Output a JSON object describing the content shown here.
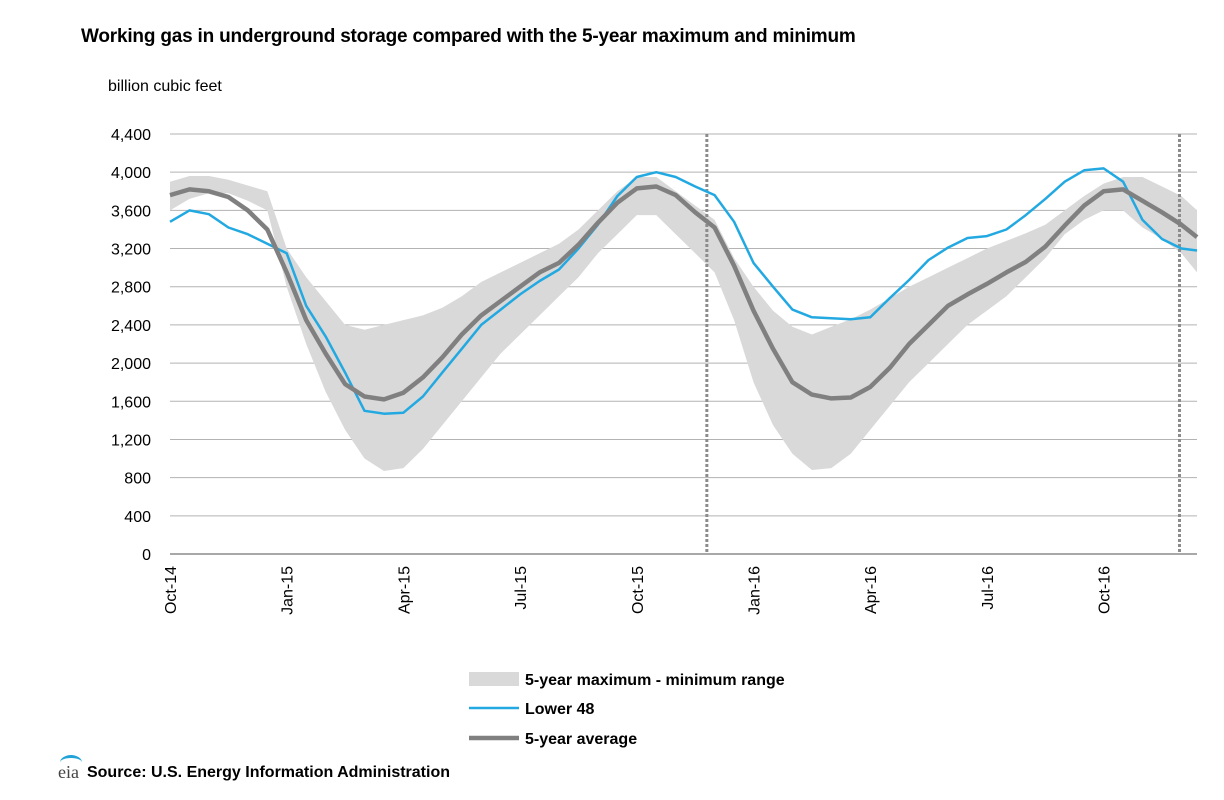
{
  "title": "Working gas in underground storage compared with the  5-year maximum and minimum",
  "unit_label": "billion  cubic feet",
  "source": "Source:  U.S. Energy Information Administration",
  "logo_text": "eia",
  "colors": {
    "range": "#d9d9d9",
    "lower48": "#23a9e1",
    "avg": "#808080",
    "grid": "#b3b3b3",
    "divider": "#8c8c8c"
  },
  "chart_data": {
    "type": "area",
    "title": "Working gas in underground storage compared with the  5-year maximum and minimum",
    "ylabel": "billion  cubic feet",
    "xlabel": "",
    "ylim": [
      0,
      4400
    ],
    "xlim": [
      0,
      26.4
    ],
    "yticks": [
      0,
      400,
      800,
      1200,
      1600,
      2000,
      2400,
      2800,
      3200,
      3600,
      4000,
      4400
    ],
    "ytick_labels": [
      "0",
      "400",
      "800",
      "1,200",
      "1,600",
      "2,000",
      "2,400",
      "2,800",
      "3,200",
      "3,600",
      "4,000",
      "4,400"
    ],
    "xticks": [
      0,
      3,
      6,
      9,
      12,
      15,
      18,
      21,
      24
    ],
    "xtick_labels": [
      "Oct-14",
      "Jan-15",
      "Apr-15",
      "Jul-15",
      "Oct-15",
      "Jan-16",
      "Apr-16",
      "Jul-16",
      "Oct-16"
    ],
    "x_units": "months since Oct-14",
    "dividers": [
      13.8,
      25.95
    ],
    "grid": true,
    "legend_position": "bottom",
    "x": [
      0,
      0.5,
      1,
      1.5,
      2,
      2.5,
      3,
      3.5,
      4,
      4.5,
      5,
      5.5,
      6,
      6.5,
      7,
      7.5,
      8,
      8.5,
      9,
      9.5,
      10,
      10.5,
      11,
      11.5,
      12,
      12.5,
      13,
      13.5,
      14,
      14.5,
      15,
      15.5,
      16,
      16.5,
      17,
      17.5,
      18,
      18.5,
      19,
      19.5,
      20,
      20.5,
      21,
      21.5,
      22,
      22.5,
      23,
      23.5,
      24,
      24.5,
      25,
      25.5,
      26,
      26.4
    ],
    "series": [
      {
        "name": "5-year maximum - minimum range",
        "kind": "band",
        "upper": [
          3900,
          3960,
          3960,
          3920,
          3860,
          3800,
          3200,
          2900,
          2650,
          2400,
          2350,
          2400,
          2450,
          2500,
          2580,
          2700,
          2850,
          2950,
          3050,
          3150,
          3250,
          3400,
          3600,
          3800,
          3950,
          3950,
          3800,
          3650,
          3500,
          3100,
          2800,
          2550,
          2380,
          2300,
          2380,
          2460,
          2560,
          2680,
          2800,
          2900,
          3000,
          3100,
          3200,
          3280,
          3360,
          3450,
          3600,
          3750,
          3880,
          3950,
          3950,
          3850,
          3750,
          3600
        ],
        "lower": [
          3600,
          3720,
          3780,
          3780,
          3700,
          3600,
          2800,
          2200,
          1700,
          1300,
          1000,
          870,
          900,
          1100,
          1350,
          1600,
          1850,
          2100,
          2300,
          2500,
          2700,
          2900,
          3150,
          3350,
          3550,
          3550,
          3350,
          3150,
          2950,
          2450,
          1800,
          1350,
          1050,
          880,
          900,
          1050,
          1300,
          1550,
          1800,
          2000,
          2200,
          2400,
          2550,
          2700,
          2900,
          3100,
          3350,
          3500,
          3600,
          3600,
          3420,
          3300,
          3150,
          2950
        ]
      },
      {
        "name": "Lower 48",
        "kind": "line",
        "values": [
          3480,
          3600,
          3560,
          3420,
          3350,
          3250,
          3150,
          2600,
          2280,
          1900,
          1500,
          1470,
          1480,
          1650,
          1900,
          2150,
          2400,
          2560,
          2720,
          2860,
          2980,
          3200,
          3450,
          3750,
          3950,
          4000,
          3950,
          3850,
          3760,
          3480,
          3050,
          2800,
          2560,
          2480,
          2470,
          2460,
          2480,
          2680,
          2870,
          3080,
          3210,
          3310,
          3330,
          3400,
          3550,
          3720,
          3900,
          4020,
          4040,
          3900,
          3500,
          3300,
          3200,
          3180
        ]
      },
      {
        "name": "5-year average",
        "kind": "line",
        "values": [
          3760,
          3820,
          3800,
          3740,
          3600,
          3400,
          2950,
          2450,
          2100,
          1780,
          1650,
          1620,
          1690,
          1850,
          2060,
          2300,
          2500,
          2650,
          2800,
          2950,
          3050,
          3240,
          3470,
          3680,
          3830,
          3850,
          3760,
          3580,
          3420,
          3020,
          2550,
          2150,
          1800,
          1670,
          1630,
          1640,
          1750,
          1950,
          2200,
          2400,
          2600,
          2720,
          2830,
          2950,
          3060,
          3220,
          3440,
          3650,
          3800,
          3820,
          3700,
          3580,
          3450,
          3320
        ]
      }
    ]
  }
}
